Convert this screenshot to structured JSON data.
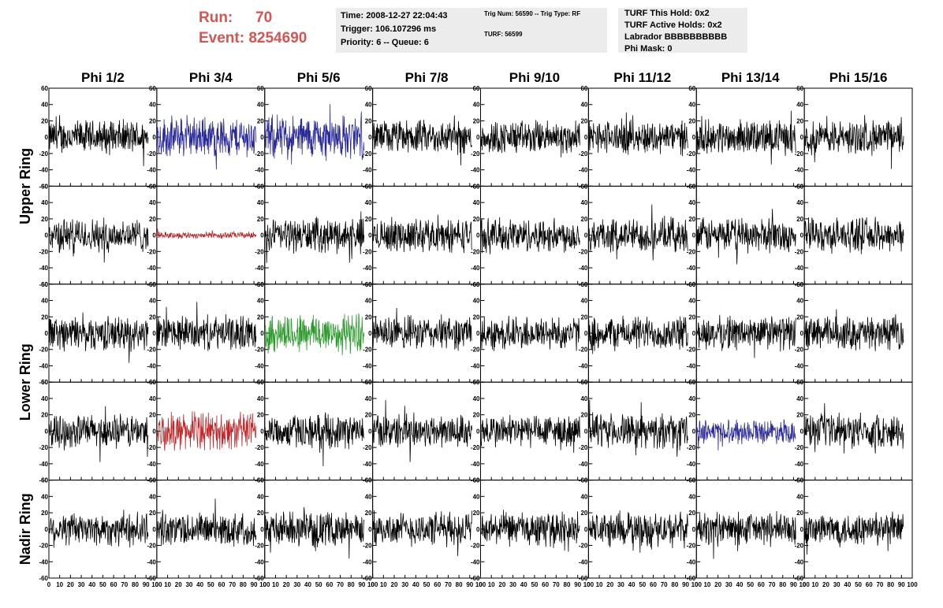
{
  "header": {
    "run_label": "Run:",
    "run_value": "70",
    "event_label": "Event:",
    "event_value": "8254690",
    "time": "Time: 2008-12-27 22:04:43",
    "trigger": "Trigger: 106.107296 ms",
    "priority": "Priority: 6 -- Queue: 6",
    "trig_num": "Trig Num: 56590 -- Trig Type: RF",
    "turf": "TURF: 56599",
    "turf_hold": "TURF This Hold: 0x2",
    "turf_active": "TURF Active Holds: 0x2",
    "labrador": "Labrador BBBBBBBBBB",
    "phi_mask": "Phi Mask: 0"
  },
  "chart_data": {
    "type": "line",
    "columns": [
      "Phi 1/2",
      "Phi 3/4",
      "Phi 5/6",
      "Phi 7/8",
      "Phi 9/10",
      "Phi 11/12",
      "Phi 13/14",
      "Phi 15/16"
    ],
    "row_groups": [
      {
        "label": "Upper Ring",
        "rows": [
          0,
          1
        ]
      },
      {
        "label": "Lower Ring",
        "rows": [
          2,
          3
        ]
      },
      {
        "label": "Nadir Ring",
        "rows": [
          4
        ]
      }
    ],
    "rows": 5,
    "xlim": [
      0,
      100
    ],
    "ylim": [
      -60,
      60
    ],
    "x_ticks": [
      "0",
      "10",
      "20",
      "30",
      "40",
      "50",
      "60",
      "70",
      "80",
      "90",
      "100"
    ],
    "y_ticks": [
      "60",
      "40",
      "20",
      "0",
      "-20",
      "-40",
      "-60"
    ],
    "colors": {
      "default": "#000000",
      "blue": "#2a2a9a",
      "red": "#c0282a",
      "green": "#2a9a2a"
    },
    "highlighted_panels": [
      {
        "row": 0,
        "col": 1,
        "color": "blue",
        "amplitude": 24
      },
      {
        "row": 0,
        "col": 2,
        "color": "blue",
        "amplitude": 26
      },
      {
        "row": 1,
        "col": 1,
        "color": "red",
        "amplitude": 4
      },
      {
        "row": 2,
        "col": 2,
        "color": "green",
        "amplitude": 24
      },
      {
        "row": 3,
        "col": 1,
        "color": "red",
        "amplitude": 22
      },
      {
        "row": 3,
        "col": 6,
        "color": "blue",
        "amplitude": 14
      }
    ],
    "default_amplitude": 20
  }
}
